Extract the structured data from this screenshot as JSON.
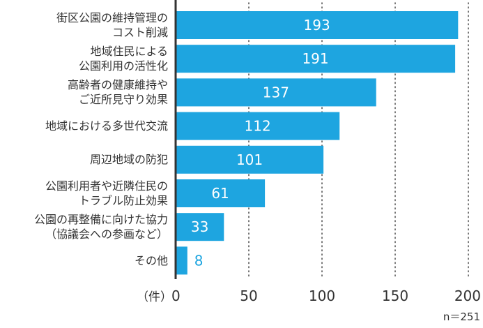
{
  "chart_data": {
    "type": "bar",
    "orientation": "horizontal",
    "categories": [
      [
        "街区公園の維持管理の",
        "コスト削減"
      ],
      [
        "地域住民による",
        "公園利用の活性化"
      ],
      [
        "高齢者の健康維持や",
        "ご近所見守り効果"
      ],
      [
        "地域における多世代交流"
      ],
      [
        "周辺地域の防犯"
      ],
      [
        "公園利用者や近隣住民の",
        "トラブル防止効果"
      ],
      [
        "公園の再整備に向けた協力",
        "（協議会への参画など）"
      ],
      [
        "その他"
      ]
    ],
    "values": [
      193,
      191,
      137,
      112,
      101,
      61,
      33,
      8
    ],
    "value_labels": [
      "193",
      "191",
      "137",
      "112",
      "101",
      "61",
      "33",
      "8"
    ],
    "xlim": [
      0,
      200
    ],
    "xticks": [
      0,
      50,
      100,
      150,
      200
    ],
    "xtick_labels": [
      "0",
      "50",
      "100",
      "150",
      "200"
    ],
    "unit_label": "（件）",
    "note": "n＝251",
    "grid": "vertical dotted",
    "colors": {
      "bar": "#1ea5e0",
      "label_inside": "#ffffff",
      "label_outside": "#1ea5e0",
      "axis": "#333333"
    }
  }
}
